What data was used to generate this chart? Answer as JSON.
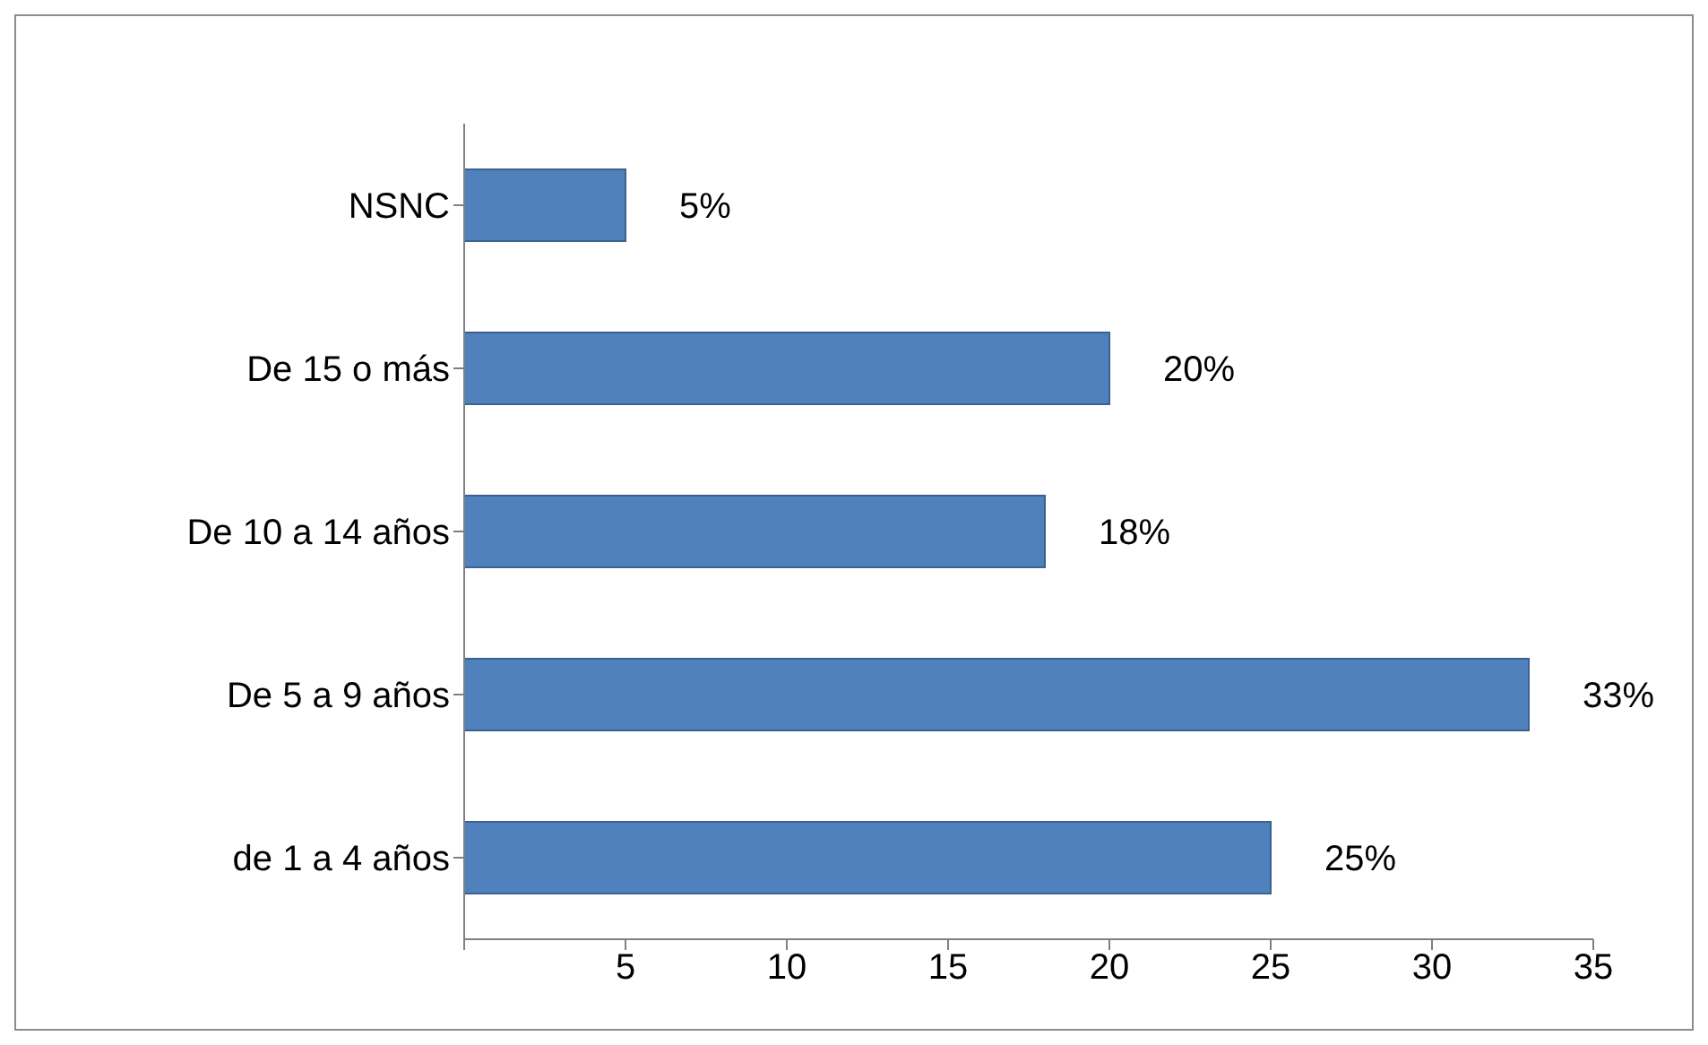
{
  "chart_data": {
    "type": "bar",
    "orientation": "horizontal",
    "categories": [
      "NSNC",
      "De 15 o más",
      "De 10 a 14 años",
      "De 5 a 9 años",
      "de 1 a 4 años"
    ],
    "values": [
      5,
      20,
      18,
      33,
      25
    ],
    "value_labels": [
      "5%",
      "20%",
      "18%",
      "33%",
      "25%"
    ],
    "color": "#4f81bd",
    "xlim": [
      0,
      35
    ],
    "xticks": [
      {
        "value": 0,
        "label": null
      },
      5,
      10,
      15,
      20,
      25,
      30,
      35
    ],
    "grid": false,
    "legend": false
  }
}
